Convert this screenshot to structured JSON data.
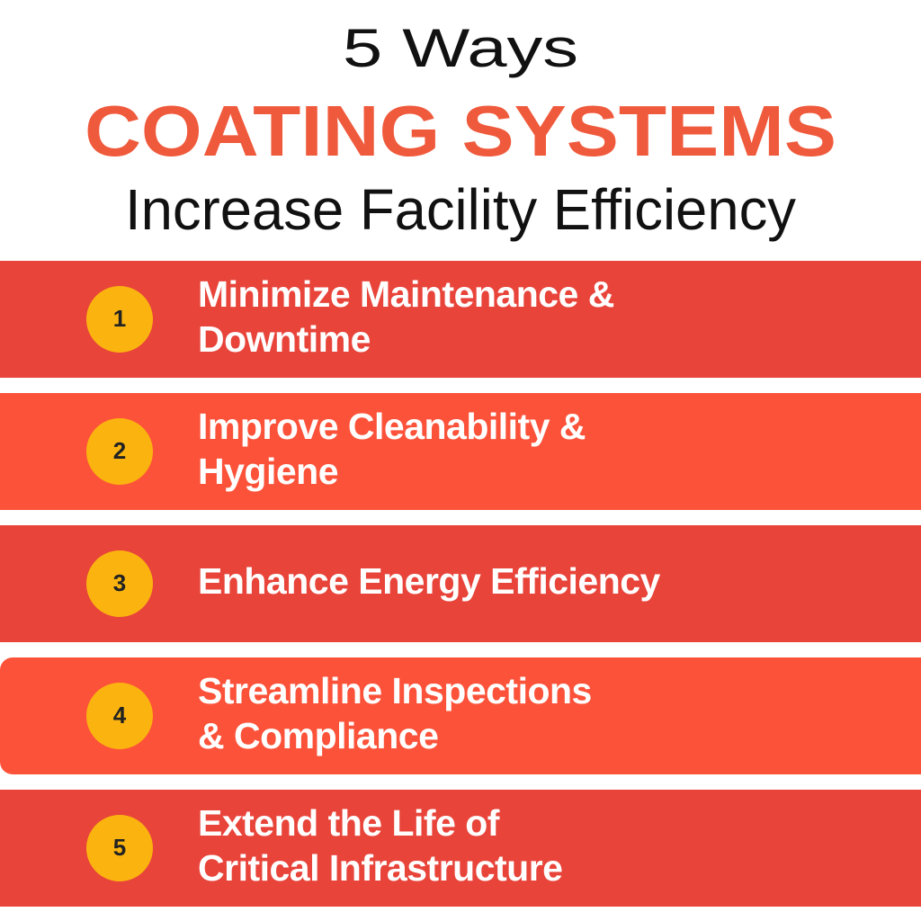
{
  "header": {
    "kicker": "5 Ways",
    "title": "COATING SYSTEMS",
    "subtitle": "Increase Facility Efficiency"
  },
  "items": [
    {
      "number": 1,
      "lines": [
        "Minimize Maintenance &",
        "Downtime"
      ]
    },
    {
      "number": 2,
      "lines": [
        "Improve Cleanability &",
        "Hygiene"
      ]
    },
    {
      "number": 3,
      "lines": [
        "Enhance Energy Efficiency"
      ]
    },
    {
      "number": 4,
      "lines": [
        "Streamline Inspections",
        "& Compliance"
      ]
    },
    {
      "number": 5,
      "lines": [
        "Extend the Life of",
        "Critical Infrastructure"
      ]
    }
  ]
}
